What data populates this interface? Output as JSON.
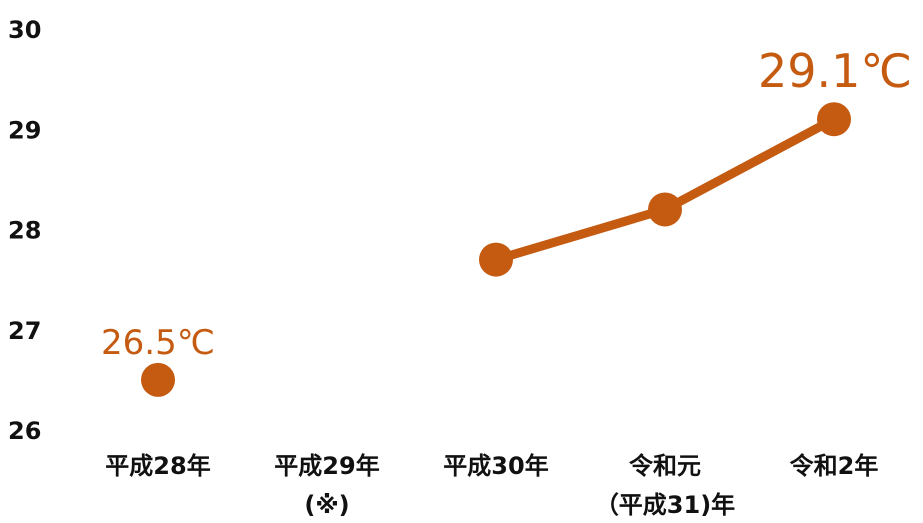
{
  "chart_data": {
    "type": "line",
    "title": "",
    "xlabel": "",
    "ylabel": "",
    "ylim": [
      26,
      30
    ],
    "yticks": [
      "26",
      "27",
      "28",
      "29",
      "30"
    ],
    "grid": false,
    "legend": "none",
    "categories": [
      [
        "平成28年"
      ],
      [
        "平成29年",
        "(※)"
      ],
      [
        "平成30年"
      ],
      [
        "令和元",
        "（平成31)年"
      ],
      [
        "令和2年"
      ]
    ],
    "series": [
      {
        "values": [
          26.5,
          null,
          27.7,
          28.2,
          29.1
        ],
        "color": "#c55a11"
      }
    ],
    "data_labels": [
      {
        "index": 0,
        "text": "26.5℃"
      },
      {
        "index": 4,
        "text": "29.1℃"
      }
    ]
  }
}
